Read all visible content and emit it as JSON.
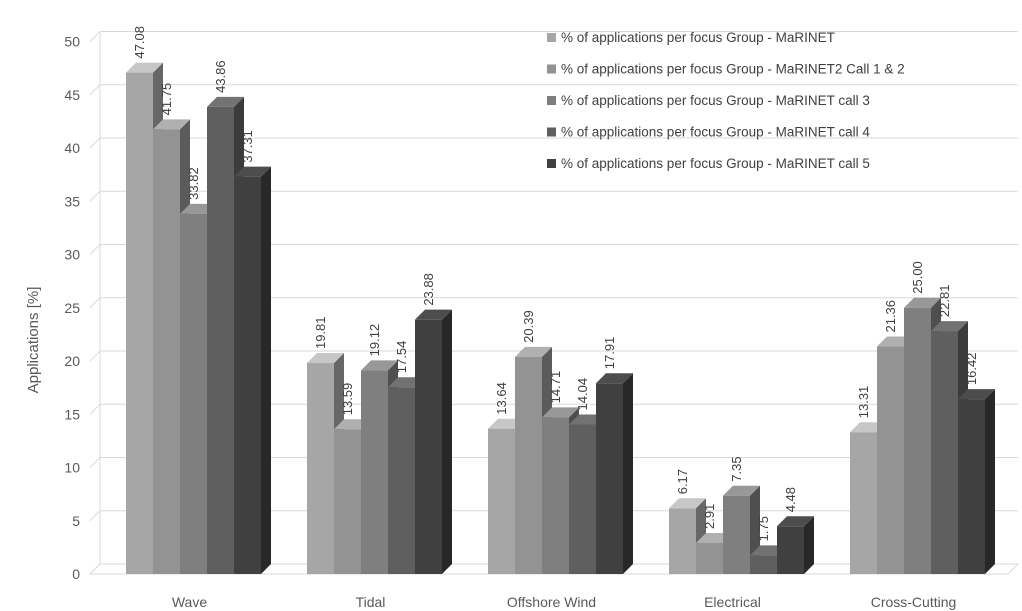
{
  "chart_data": {
    "type": "bar",
    "style": "3d-clustered-column",
    "title": "",
    "xlabel": "",
    "ylabel": "Applications [%]",
    "ylim": [
      0,
      50
    ],
    "yticks": [
      0,
      5,
      10,
      15,
      20,
      25,
      30,
      35,
      40,
      45,
      50
    ],
    "grid": true,
    "legend_position": "top-right",
    "categories": [
      "Wave",
      "Tidal",
      "Offshore Wind",
      "Electrical",
      "Cross-Cutting"
    ],
    "series": [
      {
        "name": "% of applications per focus Group - MaRINET",
        "color": "#a6a6a6",
        "values": [
          47.08,
          19.81,
          13.64,
          6.17,
          13.31
        ],
        "labels": [
          "47.08",
          "19.81",
          "13.64",
          "6.17",
          "13.31"
        ]
      },
      {
        "name": "% of applications per focus Group - MaRINET2 Call 1 & 2",
        "color": "#939393",
        "values": [
          41.75,
          13.59,
          20.39,
          2.91,
          21.36
        ],
        "labels": [
          "41.75",
          "13.59",
          "20.39",
          "2.91",
          "21.36"
        ]
      },
      {
        "name": "% of applications per focus Group - MaRINET call 3",
        "color": "#7f7f7f",
        "values": [
          33.82,
          19.12,
          14.71,
          7.35,
          25.0
        ],
        "labels": [
          "33.82",
          "19.12",
          "14.71",
          "7.35",
          "25.00"
        ]
      },
      {
        "name": "% of applications per focus Group - MaRINET call 4",
        "color": "#5f5f5f",
        "values": [
          43.86,
          17.54,
          14.04,
          1.75,
          22.81
        ],
        "labels": [
          "43.86",
          "17.54",
          "14.04",
          "1.75",
          "22.81"
        ]
      },
      {
        "name": "% of applications per focus Group - MaRINET call 5",
        "color": "#404040",
        "values": [
          37.31,
          23.88,
          17.91,
          4.48,
          16.42
        ],
        "labels": [
          "37.31",
          "23.88",
          "17.91",
          "4.48",
          "16.42"
        ]
      }
    ]
  }
}
